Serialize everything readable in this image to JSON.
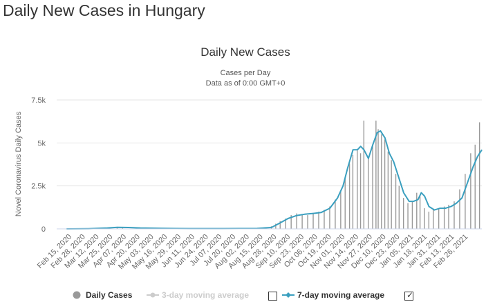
{
  "page": {
    "title": "Daily New Cases in Hungary"
  },
  "chart_data": {
    "type": "bar",
    "title": "Daily New Cases",
    "subtitle": [
      "Cases per Day",
      "Data as of 0:00 GMT+0"
    ],
    "ylabel": "Novel Coronavirus Daily Cases",
    "xlabel": "",
    "ylim": [
      0,
      7500
    ],
    "y_ticks": [
      {
        "value": 0,
        "label": "0"
      },
      {
        "value": 2500,
        "label": "2.5k"
      },
      {
        "value": 5000,
        "label": "5k"
      },
      {
        "value": 7500,
        "label": "7.5k"
      }
    ],
    "x_range": [
      "2020-02-15",
      "2021-03-07"
    ],
    "x_tick_labels": [
      "Feb 15, 2020",
      "Feb 28, 2020",
      "Mar 12, 2020",
      "Mar 25, 2020",
      "Apr 07, 2020",
      "Apr 20, 2020",
      "May 03, 2020",
      "May 16, 2020",
      "May 29, 2020",
      "Jun 11, 2020",
      "Jun 24, 2020",
      "Jul 07, 2020",
      "Jul 20, 2020",
      "Aug 02, 2020",
      "Aug 15, 2020",
      "Aug 28, 2020",
      "Sep 10, 2020",
      "Sep 23, 2020",
      "Oct 06, 2020",
      "Oct 19, 2020",
      "Nov 01, 2020",
      "Nov 14, 2020",
      "Nov 27, 2020",
      "Dec 10, 2020",
      "Dec 23, 2020",
      "Jan 05, 2021",
      "Jan 18, 2021",
      "Jan 31, 2021",
      "Feb 13, 2021",
      "Feb 26, 2021"
    ],
    "grid": true,
    "series": [
      {
        "name": "Daily Cases",
        "type": "bar",
        "color": "#999999",
        "points": [
          [
            "2020-03-15",
            10
          ],
          [
            "2020-04-01",
            40
          ],
          [
            "2020-04-10",
            100
          ],
          [
            "2020-04-15",
            80
          ],
          [
            "2020-05-01",
            40
          ],
          [
            "2020-05-20",
            30
          ],
          [
            "2020-06-15",
            10
          ],
          [
            "2020-07-15",
            15
          ],
          [
            "2020-08-01",
            20
          ],
          [
            "2020-08-20",
            40
          ],
          [
            "2020-08-28",
            150
          ],
          [
            "2020-09-01",
            300
          ],
          [
            "2020-09-05",
            450
          ],
          [
            "2020-09-10",
            600
          ],
          [
            "2020-09-15",
            800
          ],
          [
            "2020-09-20",
            900
          ],
          [
            "2020-09-25",
            850
          ],
          [
            "2020-09-30",
            800
          ],
          [
            "2020-10-05",
            900
          ],
          [
            "2020-10-10",
            1000
          ],
          [
            "2020-10-15",
            1100
          ],
          [
            "2020-10-20",
            1300
          ],
          [
            "2020-10-25",
            1700
          ],
          [
            "2020-10-30",
            2200
          ],
          [
            "2020-11-03",
            3000
          ],
          [
            "2020-11-07",
            3800
          ],
          [
            "2020-11-10",
            4300
          ],
          [
            "2020-11-14",
            4600
          ],
          [
            "2020-11-17",
            4400
          ],
          [
            "2020-11-20",
            6300
          ],
          [
            "2020-11-24",
            4200
          ],
          [
            "2020-11-28",
            4900
          ],
          [
            "2020-12-01",
            6300
          ],
          [
            "2020-12-03",
            5800
          ],
          [
            "2020-12-06",
            5500
          ],
          [
            "2020-12-09",
            5200
          ],
          [
            "2020-12-12",
            4500
          ],
          [
            "2020-12-15",
            4000
          ],
          [
            "2020-12-19",
            3200
          ],
          [
            "2020-12-22",
            2500
          ],
          [
            "2020-12-26",
            1800
          ],
          [
            "2020-12-30",
            1500
          ],
          [
            "2021-01-03",
            1600
          ],
          [
            "2021-01-07",
            2100
          ],
          [
            "2021-01-10",
            1900
          ],
          [
            "2021-01-14",
            1200
          ],
          [
            "2021-01-18",
            1000
          ],
          [
            "2021-01-22",
            1100
          ],
          [
            "2021-01-27",
            1200
          ],
          [
            "2021-02-01",
            1300
          ],
          [
            "2021-02-05",
            1400
          ],
          [
            "2021-02-10",
            1600
          ],
          [
            "2021-02-15",
            2300
          ],
          [
            "2021-02-20",
            3200
          ],
          [
            "2021-02-25",
            4400
          ],
          [
            "2021-03-01",
            4900
          ],
          [
            "2021-03-05",
            6200
          ]
        ]
      },
      {
        "name": "3-day moving average",
        "type": "line",
        "color": "#cccccc",
        "visible": false
      },
      {
        "name": "7-day moving average",
        "type": "line",
        "color": "#3a9fbf",
        "points": [
          [
            "2020-02-24",
            0
          ],
          [
            "2020-03-15",
            10
          ],
          [
            "2020-04-01",
            50
          ],
          [
            "2020-04-10",
            90
          ],
          [
            "2020-04-20",
            80
          ],
          [
            "2020-05-01",
            50
          ],
          [
            "2020-05-20",
            30
          ],
          [
            "2020-06-15",
            15
          ],
          [
            "2020-07-15",
            15
          ],
          [
            "2020-08-15",
            25
          ],
          [
            "2020-08-28",
            80
          ],
          [
            "2020-09-05",
            350
          ],
          [
            "2020-09-12",
            600
          ],
          [
            "2020-09-20",
            780
          ],
          [
            "2020-09-27",
            850
          ],
          [
            "2020-10-05",
            900
          ],
          [
            "2020-10-12",
            950
          ],
          [
            "2020-10-20",
            1200
          ],
          [
            "2020-10-27",
            1800
          ],
          [
            "2020-11-01",
            2500
          ],
          [
            "2020-11-05",
            3500
          ],
          [
            "2020-11-10",
            4600
          ],
          [
            "2020-11-14",
            4600
          ],
          [
            "2020-11-17",
            4800
          ],
          [
            "2020-11-20",
            4600
          ],
          [
            "2020-11-24",
            4100
          ],
          [
            "2020-11-28",
            4900
          ],
          [
            "2020-12-02",
            5600
          ],
          [
            "2020-12-05",
            5700
          ],
          [
            "2020-12-09",
            5300
          ],
          [
            "2020-12-13",
            4400
          ],
          [
            "2020-12-17",
            3900
          ],
          [
            "2020-12-21",
            3100
          ],
          [
            "2020-12-26",
            2100
          ],
          [
            "2020-12-31",
            1600
          ],
          [
            "2021-01-04",
            1600
          ],
          [
            "2021-01-08",
            1700
          ],
          [
            "2021-01-11",
            2100
          ],
          [
            "2021-01-14",
            1900
          ],
          [
            "2021-01-18",
            1300
          ],
          [
            "2021-01-23",
            1100
          ],
          [
            "2021-01-28",
            1200
          ],
          [
            "2021-02-02",
            1200
          ],
          [
            "2021-02-07",
            1300
          ],
          [
            "2021-02-12",
            1500
          ],
          [
            "2021-02-17",
            1800
          ],
          [
            "2021-02-22",
            2700
          ],
          [
            "2021-02-27",
            3600
          ],
          [
            "2021-03-03",
            4200
          ],
          [
            "2021-03-07",
            4600
          ]
        ]
      }
    ],
    "legend": {
      "placement": "bottom",
      "items": [
        {
          "label": "Daily Cases",
          "color": "#999999",
          "marker": "circle"
        },
        {
          "label": "3-day moving average",
          "color": "#cccccc",
          "marker": "line-circle",
          "checked": false
        },
        {
          "label": "7-day moving average",
          "color": "#3a9fbf",
          "marker": "line-diamond",
          "checked": true
        }
      ]
    }
  }
}
